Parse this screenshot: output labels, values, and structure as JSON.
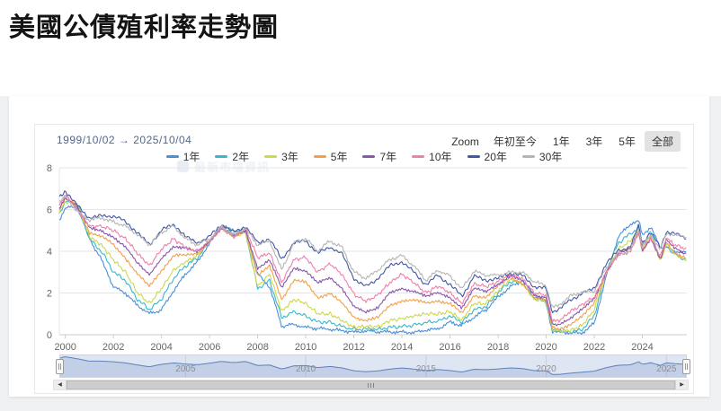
{
  "page": {
    "title": "美國公債殖利率走勢圖"
  },
  "chart": {
    "range": {
      "start": "1999/10/02",
      "arrow": "→",
      "end": "2025/10/04"
    },
    "zoom": {
      "label": "Zoom",
      "buttons": [
        {
          "label": "年初至今",
          "selected": false
        },
        {
          "label": "1年",
          "selected": false
        },
        {
          "label": "3年",
          "selected": false
        },
        {
          "label": "5年",
          "selected": false
        },
        {
          "label": "全部",
          "selected": true
        }
      ]
    },
    "watermark": "最新市場資訊",
    "yaxis": {
      "ticks": [
        0,
        2,
        4,
        6,
        8
      ]
    },
    "xaxis": {
      "ticks": [
        2000,
        2002,
        2004,
        2006,
        2008,
        2010,
        2012,
        2014,
        2016,
        2018,
        2020,
        2022,
        2024
      ]
    },
    "navigator": {
      "labels": [
        2005,
        2010,
        2015,
        2020,
        2025
      ]
    },
    "colors": {
      "grid": "#e6e6e6",
      "axis": "#cccccc",
      "tick_text": "#666666",
      "nav_bg": "#dfe6f3",
      "nav_line": "#5d80bb",
      "nav_fill": "rgba(93,128,187,0.22)",
      "nav_grid": "#c6cede",
      "nav_label": "#8f8f8f",
      "nav_outline": "#ccd4e2"
    }
  },
  "chart_data": {
    "type": "line",
    "title": "美國公債殖利率走勢圖",
    "xlabel": "",
    "ylabel": "",
    "ylim": [
      0,
      8
    ],
    "xlim": [
      1999.75,
      2025.85
    ],
    "grid": "horizontal",
    "legend_position": "top",
    "x": [
      1999.75,
      2000,
      2000.5,
      2001,
      2001.5,
      2002,
      2002.5,
      2003,
      2003.5,
      2004,
      2004.5,
      2005,
      2005.5,
      2006,
      2006.5,
      2007,
      2007.5,
      2008,
      2008.5,
      2009,
      2009.5,
      2010,
      2010.5,
      2011,
      2011.5,
      2012,
      2012.5,
      2013,
      2013.5,
      2014,
      2014.5,
      2015,
      2015.5,
      2016,
      2016.5,
      2017,
      2017.5,
      2018,
      2018.5,
      2019,
      2019.5,
      2020,
      2020.25,
      2020.5,
      2021,
      2021.5,
      2022,
      2022.5,
      2023,
      2023.5,
      2023.85,
      2024,
      2024.35,
      2024.75,
      2025,
      2025.3,
      2025.77
    ],
    "series": [
      {
        "name": "1年",
        "color": "#4a90d9",
        "values": [
          5.5,
          6.1,
          6.1,
          4.6,
          3.6,
          2.3,
          2.0,
          1.4,
          1.0,
          1.2,
          2.1,
          2.9,
          3.5,
          4.4,
          5.2,
          5.0,
          5.0,
          2.9,
          2.3,
          0.4,
          0.5,
          0.35,
          0.3,
          0.27,
          0.2,
          0.12,
          0.18,
          0.14,
          0.14,
          0.12,
          0.1,
          0.22,
          0.28,
          0.6,
          0.45,
          0.85,
          1.2,
          1.8,
          2.3,
          2.6,
          1.95,
          1.55,
          0.15,
          0.15,
          0.1,
          0.07,
          0.55,
          2.8,
          4.7,
          5.3,
          5.45,
          4.8,
          5.15,
          4.2,
          4.2,
          4.0,
          3.95
        ]
      },
      {
        "name": "2年",
        "color": "#39b8c9",
        "values": [
          5.8,
          6.4,
          6.3,
          4.6,
          4.0,
          3.0,
          2.6,
          1.7,
          1.2,
          1.7,
          2.7,
          3.3,
          3.7,
          4.5,
          5.2,
          4.8,
          4.9,
          2.2,
          2.6,
          0.8,
          1.1,
          0.9,
          0.6,
          0.6,
          0.4,
          0.25,
          0.28,
          0.26,
          0.37,
          0.38,
          0.46,
          0.6,
          0.65,
          0.9,
          0.6,
          1.2,
          1.35,
          2.0,
          2.55,
          2.5,
          1.75,
          1.55,
          0.2,
          0.16,
          0.13,
          0.25,
          0.9,
          3.05,
          4.4,
          4.85,
          5.1,
          4.3,
          4.95,
          3.6,
          4.25,
          3.9,
          3.6
        ]
      },
      {
        "name": "3年",
        "color": "#cdd84e",
        "values": [
          5.9,
          6.4,
          6.25,
          4.7,
          4.3,
          3.6,
          3.0,
          2.0,
          1.5,
          2.2,
          3.1,
          3.5,
          3.8,
          4.5,
          5.1,
          4.7,
          4.9,
          2.3,
          2.9,
          1.1,
          1.7,
          1.5,
          1.0,
          1.0,
          0.7,
          0.35,
          0.4,
          0.38,
          0.68,
          0.77,
          0.9,
          1.0,
          1.0,
          1.1,
          0.7,
          1.5,
          1.5,
          2.1,
          2.65,
          2.45,
          1.7,
          1.6,
          0.27,
          0.18,
          0.2,
          0.45,
          1.2,
          3.0,
          4.1,
          4.5,
          4.95,
          4.1,
          4.8,
          3.5,
          4.35,
          3.9,
          3.6
        ]
      },
      {
        "name": "5年",
        "color": "#f2a14a",
        "values": [
          6.0,
          6.5,
          6.2,
          4.9,
          4.7,
          4.3,
          3.7,
          2.9,
          2.3,
          3.1,
          3.8,
          3.8,
          3.9,
          4.5,
          5.1,
          4.7,
          5.0,
          2.8,
          3.3,
          1.7,
          2.6,
          2.5,
          1.8,
          2.0,
          1.5,
          0.85,
          0.7,
          0.8,
          1.4,
          1.65,
          1.65,
          1.5,
          1.65,
          1.5,
          1.0,
          1.9,
          1.8,
          2.3,
          2.75,
          2.5,
          1.75,
          1.65,
          0.4,
          0.3,
          0.45,
          0.87,
          1.55,
          3.0,
          3.9,
          4.2,
          4.9,
          4.0,
          4.65,
          3.55,
          4.45,
          4.0,
          3.7
        ]
      },
      {
        "name": "7年",
        "color": "#8757ad",
        "values": [
          6.1,
          6.6,
          6.1,
          5.1,
          5.0,
          4.7,
          4.2,
          3.4,
          2.9,
          3.7,
          4.2,
          4.1,
          4.0,
          4.5,
          5.1,
          4.7,
          5.0,
          3.2,
          3.6,
          2.2,
          3.2,
          3.1,
          2.5,
          2.7,
          2.2,
          1.4,
          1.1,
          1.25,
          2.0,
          2.25,
          2.1,
          1.8,
          2.0,
          1.8,
          1.3,
          2.2,
          2.05,
          2.45,
          2.85,
          2.6,
          1.85,
          1.8,
          0.55,
          0.5,
          0.75,
          1.2,
          1.75,
          3.05,
          3.85,
          4.1,
          4.95,
          4.05,
          4.65,
          3.65,
          4.55,
          4.15,
          3.85
        ]
      },
      {
        "name": "10年",
        "color": "#ef7fae",
        "values": [
          6.2,
          6.7,
          6.0,
          5.2,
          5.2,
          5.0,
          4.6,
          3.9,
          3.3,
          4.1,
          4.6,
          4.2,
          4.0,
          4.5,
          5.1,
          4.7,
          5.1,
          3.7,
          3.9,
          2.5,
          3.6,
          3.7,
          3.0,
          3.4,
          2.9,
          1.95,
          1.6,
          1.9,
          2.5,
          2.9,
          2.5,
          2.0,
          2.35,
          2.0,
          1.5,
          2.45,
          2.3,
          2.55,
          2.9,
          2.7,
          2.0,
          1.9,
          0.7,
          0.65,
          1.1,
          1.45,
          1.8,
          3.0,
          3.8,
          3.95,
          4.95,
          4.1,
          4.65,
          3.75,
          4.65,
          4.35,
          4.12
        ]
      },
      {
        "name": "20年",
        "color": "#4257a5",
        "values": [
          6.6,
          6.9,
          6.2,
          5.6,
          5.7,
          5.7,
          5.4,
          4.9,
          4.3,
          5.0,
          5.3,
          4.7,
          4.4,
          4.7,
          5.3,
          4.9,
          5.2,
          4.4,
          4.6,
          3.6,
          4.4,
          4.5,
          3.9,
          4.2,
          3.9,
          2.7,
          2.3,
          2.7,
          3.3,
          3.5,
          3.0,
          2.4,
          2.85,
          2.4,
          1.85,
          2.8,
          2.6,
          2.7,
          2.95,
          2.85,
          2.3,
          2.2,
          1.1,
          1.2,
          1.65,
          2.0,
          2.2,
          3.4,
          4.05,
          4.2,
          5.25,
          4.4,
          4.9,
          4.15,
          4.95,
          4.85,
          4.65
        ]
      },
      {
        "name": "30年",
        "color": "#b5b5b5",
        "values": [
          6.4,
          6.6,
          5.9,
          5.5,
          5.6,
          5.4,
          5.2,
          4.8,
          4.3,
          4.9,
          5.2,
          4.6,
          4.3,
          4.6,
          5.2,
          4.8,
          5.1,
          4.3,
          4.5,
          3.1,
          4.4,
          4.6,
          4.0,
          4.5,
          4.2,
          3.0,
          2.7,
          3.1,
          3.6,
          3.8,
          3.3,
          2.6,
          3.1,
          2.8,
          2.2,
          3.05,
          2.85,
          2.85,
          3.0,
          3.0,
          2.55,
          2.35,
          1.3,
          1.4,
          1.85,
          2.05,
          2.1,
          3.2,
          3.9,
          4.0,
          5.1,
          4.3,
          4.75,
          4.1,
          4.85,
          4.8,
          4.7
        ]
      }
    ],
    "navigator_series": "10年"
  }
}
